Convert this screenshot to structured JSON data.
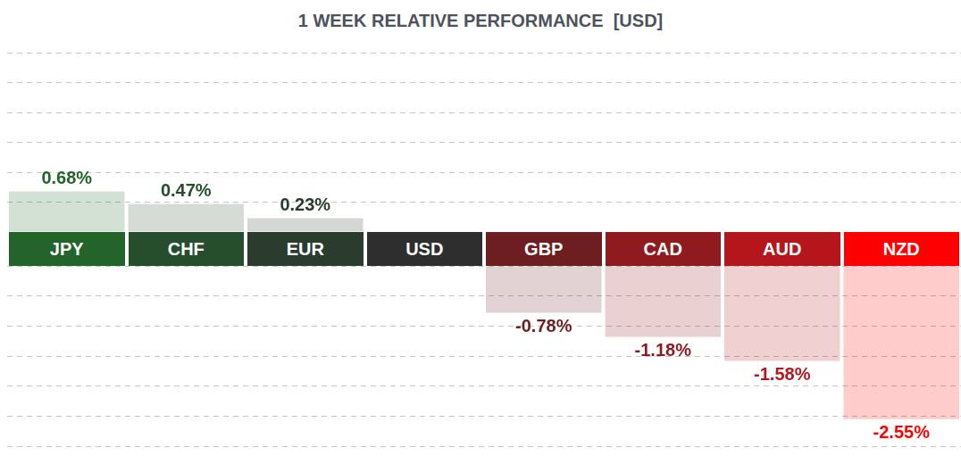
{
  "chart_data": {
    "type": "bar",
    "title": "1 WEEK RELATIVE PERFORMANCE  [USD]",
    "categories": [
      "JPY",
      "CHF",
      "EUR",
      "USD",
      "GBP",
      "CAD",
      "AUD",
      "NZD"
    ],
    "values": [
      0.68,
      0.47,
      0.23,
      0,
      -0.78,
      -1.18,
      -1.58,
      -2.55
    ],
    "value_labels": [
      "0.68%",
      "0.47%",
      "0.23%",
      null,
      "-0.78%",
      "-1.18%",
      "-1.58%",
      "-2.55%"
    ],
    "colors": [
      "#22642a",
      "#264e2c",
      "#2a3c2e",
      "#2e2e2e",
      "#6e1e21",
      "#8f1b1f",
      "#b5161b",
      "#ff0000"
    ],
    "ylim": [
      -3,
      3
    ],
    "yticks": [
      -3,
      -2.5,
      -2,
      -1.5,
      -1,
      -0.5,
      0,
      0.5,
      1,
      1.5,
      2,
      2.5,
      3
    ],
    "grid": true,
    "data_labels": true,
    "tick_labels": "x"
  }
}
